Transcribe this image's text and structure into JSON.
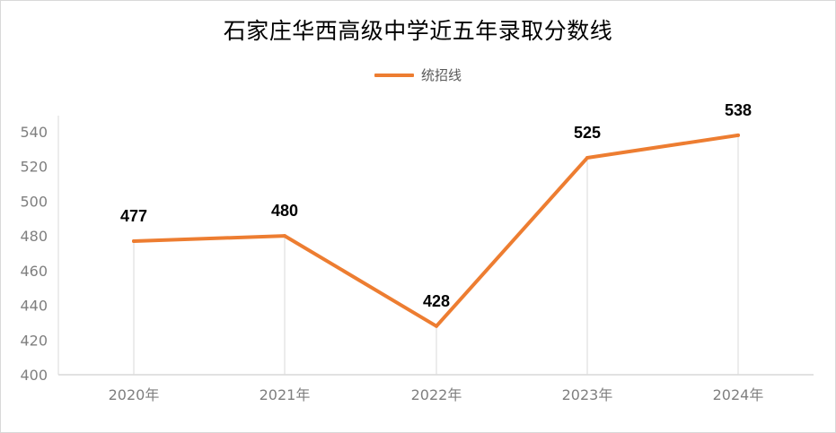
{
  "chart_data": {
    "type": "line",
    "title": "石家庄华西高级中学近五年录取分数线",
    "categories": [
      "2020年",
      "2021年",
      "2022年",
      "2023年",
      "2024年"
    ],
    "series": [
      {
        "name": "统招线",
        "values": [
          477,
          480,
          428,
          525,
          538
        ],
        "color": "#ed7d31"
      }
    ],
    "data_labels": [
      "477",
      "480",
      "428",
      "525",
      "538"
    ],
    "y_ticks": [
      "400",
      "420",
      "440",
      "460",
      "480",
      "500",
      "520",
      "540"
    ],
    "ylim": [
      400,
      550
    ],
    "xlabel": "",
    "ylabel": "",
    "grid": "vertical drop lines at categories",
    "legend_position": "top-center"
  }
}
